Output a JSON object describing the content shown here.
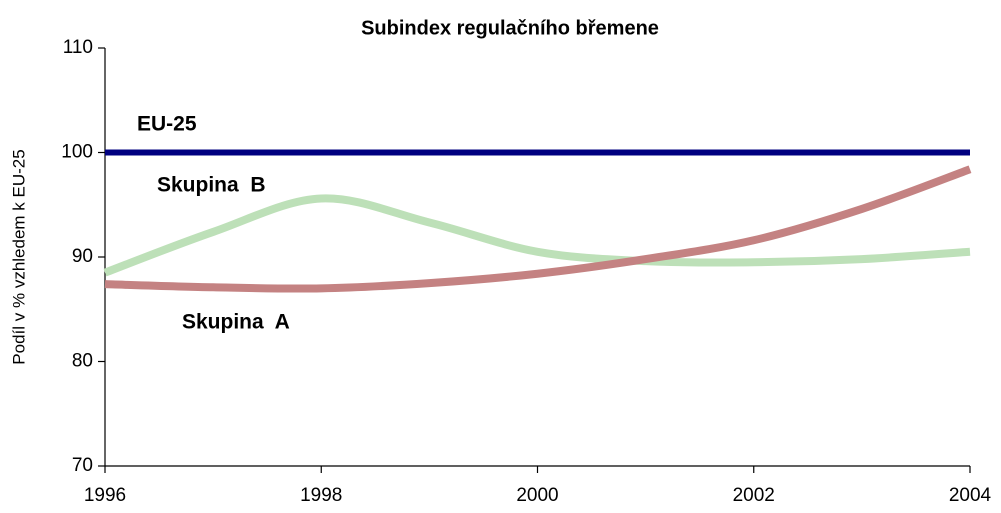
{
  "chart_data": {
    "type": "line",
    "title": "Subindex regulačního břemene",
    "y_label": "Podíl v % vzhledem k EU-25",
    "x": [
      1996,
      1997,
      1998,
      1999,
      2000,
      2001,
      2002,
      2003,
      2004
    ],
    "series": [
      {
        "name": "EU-25",
        "color": "#000080",
        "label_color": "#000080",
        "values": [
          100,
          100,
          100,
          100,
          100,
          100,
          100,
          100,
          100
        ]
      },
      {
        "name": "Skupina  B",
        "color": "#bde0b8",
        "label_color": "#228b22",
        "values": [
          88.5,
          92.4,
          95.6,
          93.3,
          90.5,
          89.6,
          89.5,
          89.8,
          90.5
        ]
      },
      {
        "name": "Skupina  A",
        "color": "#c48282",
        "label_color": "#8b1a1a",
        "values": [
          87.4,
          87.1,
          87.0,
          87.5,
          88.4,
          89.8,
          91.6,
          94.6,
          98.4
        ]
      }
    ],
    "xlim": [
      1996,
      2004
    ],
    "xticks": [
      1996,
      1998,
      2000,
      2002,
      2004
    ],
    "ylim": [
      70,
      110
    ],
    "yticks": [
      70,
      80,
      90,
      100,
      110
    ],
    "grid": false
  }
}
